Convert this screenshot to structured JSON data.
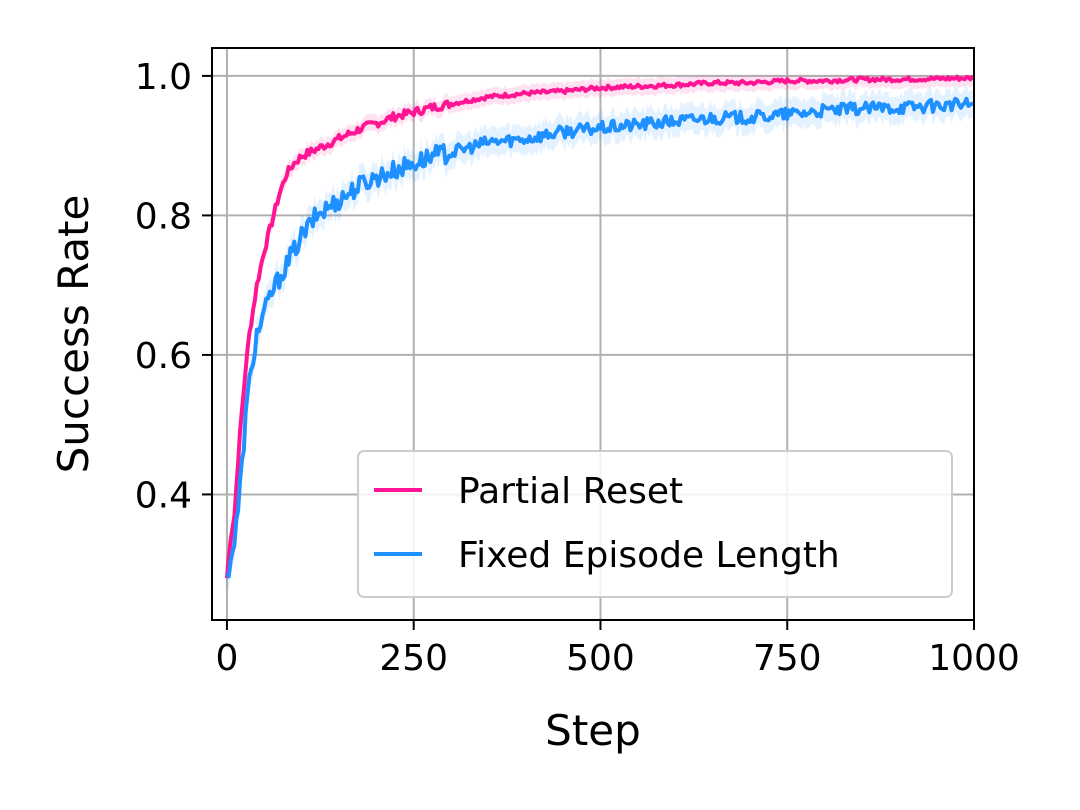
{
  "chart_data": {
    "type": "line",
    "xlabel": "Step",
    "ylabel": "Success Rate",
    "xlim": [
      -20,
      1000
    ],
    "ylim": [
      0.22,
      1.04
    ],
    "xticks": [
      0,
      250,
      500,
      750,
      1000
    ],
    "xtick_labels": [
      "0",
      "250",
      "500",
      "750",
      "1000"
    ],
    "yticks": [
      0.4,
      0.6,
      0.8,
      1.0
    ],
    "ytick_labels": [
      "0.4",
      "0.6",
      "0.8",
      "1.0"
    ],
    "grid": true,
    "legend_position": "lower-right",
    "series": [
      {
        "name": "Partial Reset",
        "color": "#ff1493",
        "x": [
          0,
          5,
          10,
          15,
          20,
          25,
          30,
          40,
          50,
          60,
          70,
          80,
          90,
          100,
          120,
          140,
          160,
          180,
          200,
          225,
          250,
          275,
          300,
          350,
          400,
          450,
          500,
          550,
          600,
          650,
          700,
          750,
          800,
          850,
          900,
          950,
          1000
        ],
        "y": [
          0.28,
          0.34,
          0.37,
          0.45,
          0.52,
          0.58,
          0.63,
          0.7,
          0.75,
          0.79,
          0.83,
          0.86,
          0.875,
          0.885,
          0.895,
          0.905,
          0.915,
          0.925,
          0.932,
          0.942,
          0.948,
          0.955,
          0.96,
          0.97,
          0.975,
          0.978,
          0.983,
          0.985,
          0.987,
          0.99,
          0.99,
          0.993,
          0.993,
          0.995,
          0.995,
          0.996,
          0.997
        ]
      },
      {
        "name": "Fixed Episode Length",
        "color": "#1e90ff",
        "x": [
          0,
          5,
          10,
          15,
          20,
          25,
          30,
          40,
          50,
          60,
          70,
          80,
          90,
          100,
          120,
          140,
          160,
          180,
          200,
          225,
          250,
          275,
          300,
          350,
          400,
          450,
          500,
          550,
          600,
          650,
          700,
          750,
          800,
          850,
          900,
          950,
          1000
        ],
        "y": [
          0.28,
          0.31,
          0.33,
          0.38,
          0.44,
          0.51,
          0.56,
          0.63,
          0.66,
          0.69,
          0.71,
          0.73,
          0.75,
          0.77,
          0.8,
          0.815,
          0.83,
          0.845,
          0.855,
          0.865,
          0.875,
          0.885,
          0.89,
          0.905,
          0.91,
          0.92,
          0.925,
          0.93,
          0.935,
          0.94,
          0.94,
          0.945,
          0.95,
          0.953,
          0.955,
          0.957,
          0.96
        ]
      }
    ]
  }
}
